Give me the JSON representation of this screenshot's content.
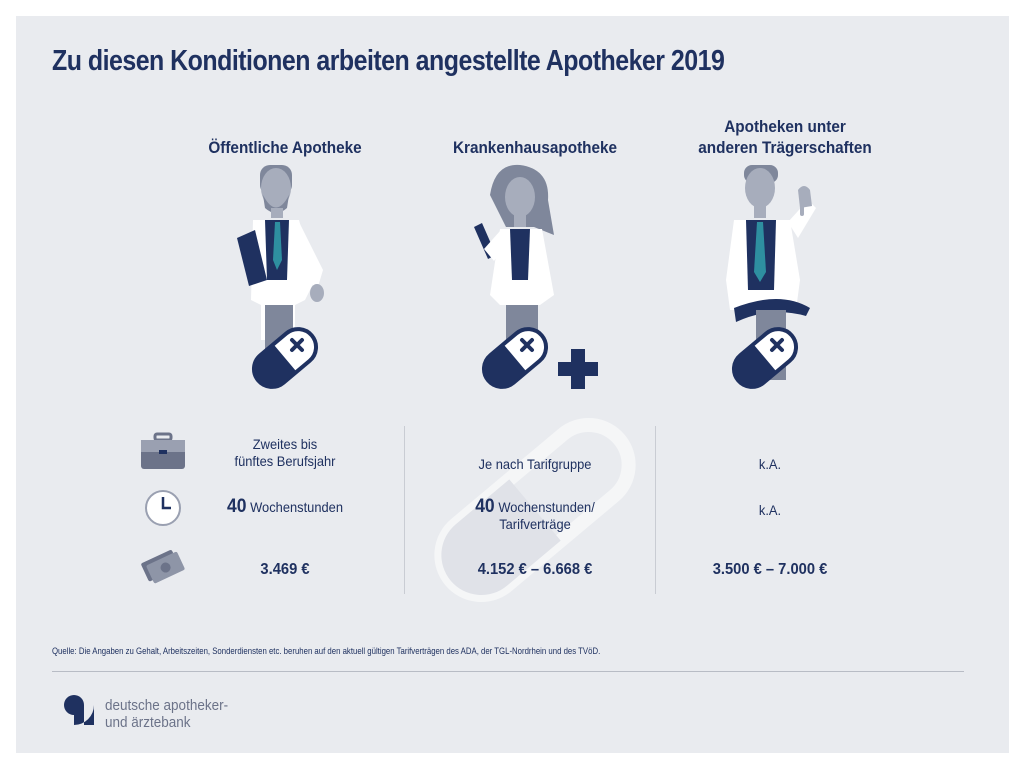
{
  "title": "Zu diesen Konditionen arbeiten angestellte Apotheker 2019",
  "columns": [
    {
      "heading": "Öffentliche Apotheke"
    },
    {
      "heading": "Krankenhausapotheke"
    },
    {
      "heading_line1": "Apotheken unter",
      "heading_line2": "anderen Trägerschaften"
    }
  ],
  "rows": {
    "experience": {
      "icon": "briefcase-icon",
      "col1_line1": "Zweites bis",
      "col1_line2": "fünftes Berufsjahr",
      "col2": "Je nach Tarifgruppe",
      "col3": "k.A."
    },
    "hours": {
      "icon": "clock-icon",
      "col1_number": "40",
      "col1_unit": "Wochenstunden",
      "col2_number": "40",
      "col2_unit": "Wochenstunden/",
      "col2_line2": "Tarifverträge",
      "col3": "k.A."
    },
    "salary": {
      "icon": "money-icon",
      "col1": "3.469 €",
      "col2": "4.152 € – 6.668 €",
      "col3": "3.500 € – 7.000 €"
    }
  },
  "source": "Quelle: Die Angaben zu Gehalt, Arbeitszeiten, Sonderdiensten etc. beruhen auf den aktuell gültigen Tarifverträgen des ADA, der TGL-Nordrhein und des TVöD.",
  "brand": {
    "line1": "deutsche apotheker-",
    "line2": "und ärztebank"
  },
  "colors": {
    "navy": "#1f3160",
    "grey": "#9aa0b1",
    "teal": "#2e8fa0",
    "background": "#e9ebef"
  }
}
